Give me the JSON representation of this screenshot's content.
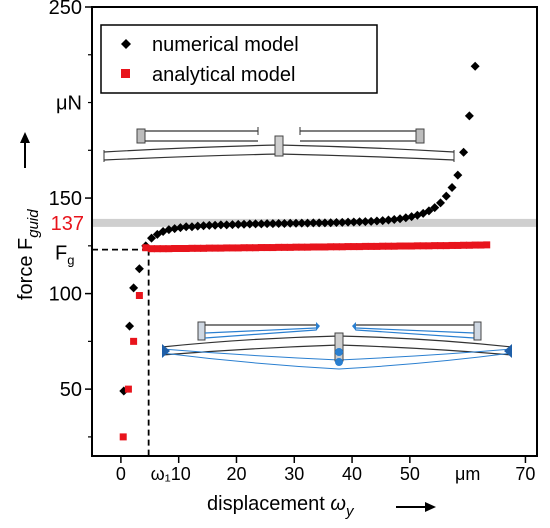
{
  "chart_data": {
    "type": "scatter",
    "xlabel": "displacement ωy",
    "ylabel": "force Fguid",
    "xlim": [
      -5,
      72
    ],
    "ylim": [
      15,
      250
    ],
    "x_ticks": [
      0,
      10,
      20,
      30,
      40,
      50,
      70
    ],
    "x_tick_labels": [
      "0",
      "ω₁10",
      "20",
      "30",
      "40",
      "50",
      "70"
    ],
    "x_unit": "μm",
    "y_ticks": [
      50,
      100,
      150,
      250
    ],
    "y_unit": "μN",
    "grid": false,
    "legend_position": "top-left",
    "series": [
      {
        "name": "numerical model",
        "color": "#000000",
        "marker": "diamond",
        "points": [
          [
            0.5,
            49
          ],
          [
            1.5,
            83
          ],
          [
            2.2,
            103
          ],
          [
            3.2,
            113
          ],
          [
            4.3,
            125
          ],
          [
            5.3,
            129
          ],
          [
            6.3,
            131
          ],
          [
            7.3,
            132.5
          ],
          [
            8.3,
            133.5
          ],
          [
            9.3,
            134
          ],
          [
            10.3,
            134.5
          ],
          [
            11.3,
            135
          ],
          [
            12.3,
            135
          ],
          [
            13.3,
            135.3
          ],
          [
            14.3,
            135.5
          ],
          [
            15.3,
            135.7
          ],
          [
            16.3,
            135.8
          ],
          [
            17.3,
            136
          ],
          [
            18.3,
            136
          ],
          [
            19.3,
            136.1
          ],
          [
            20.3,
            136.2
          ],
          [
            21.3,
            136.3
          ],
          [
            22.3,
            136.4
          ],
          [
            23.3,
            136.5
          ],
          [
            24.3,
            136.5
          ],
          [
            25.3,
            136.6
          ],
          [
            26.3,
            136.6
          ],
          [
            27.3,
            136.7
          ],
          [
            28.3,
            136.7
          ],
          [
            29.3,
            136.8
          ],
          [
            30.3,
            136.8
          ],
          [
            31.3,
            136.9
          ],
          [
            32.3,
            136.9
          ],
          [
            33.3,
            137
          ],
          [
            34.3,
            137
          ],
          [
            35.3,
            137
          ],
          [
            36.3,
            137.1
          ],
          [
            37.3,
            137.2
          ],
          [
            38.3,
            137.3
          ],
          [
            39.3,
            137.4
          ],
          [
            40.3,
            137.5
          ],
          [
            41.3,
            137.6
          ],
          [
            42.3,
            137.7
          ],
          [
            43.3,
            137.8
          ],
          [
            44.3,
            138
          ],
          [
            45.3,
            138.2
          ],
          [
            46.3,
            138.5
          ],
          [
            47.3,
            138.8
          ],
          [
            48.3,
            139.2
          ],
          [
            49.3,
            139.7
          ],
          [
            50.3,
            140.3
          ],
          [
            51.3,
            141
          ],
          [
            52.3,
            142
          ],
          [
            53.3,
            143.3
          ],
          [
            54.3,
            145
          ],
          [
            55.3,
            147.5
          ],
          [
            56.3,
            151
          ],
          [
            57.3,
            155.5
          ],
          [
            58.3,
            162
          ],
          [
            59.3,
            174
          ],
          [
            60.3,
            193
          ],
          [
            61.3,
            219
          ]
        ]
      },
      {
        "name": "analytical model",
        "color": "#e8141c",
        "marker": "square",
        "points": [
          [
            0.4,
            25
          ],
          [
            1.3,
            50
          ],
          [
            2.2,
            75
          ],
          [
            3.2,
            99
          ],
          [
            4.3,
            124
          ],
          [
            5.3,
            123.5
          ],
          [
            6.3,
            123.5
          ],
          [
            7.3,
            123.5
          ],
          [
            8.3,
            123.5
          ],
          [
            9.3,
            123.6
          ],
          [
            10.3,
            123.6
          ],
          [
            11.3,
            123.6
          ],
          [
            12.3,
            123.7
          ],
          [
            13.3,
            123.7
          ],
          [
            14.3,
            123.7
          ],
          [
            15.3,
            123.8
          ],
          [
            16.3,
            123.8
          ],
          [
            17.3,
            123.8
          ],
          [
            18.3,
            123.9
          ],
          [
            19.3,
            123.9
          ],
          [
            20.3,
            123.9
          ],
          [
            21.3,
            124
          ],
          [
            22.3,
            124
          ],
          [
            23.3,
            124
          ],
          [
            24.3,
            124.1
          ],
          [
            25.3,
            124.1
          ],
          [
            26.3,
            124.1
          ],
          [
            27.3,
            124.2
          ],
          [
            28.3,
            124.2
          ],
          [
            29.3,
            124.2
          ],
          [
            30.3,
            124.3
          ],
          [
            31.3,
            124.3
          ],
          [
            32.3,
            124.3
          ],
          [
            33.3,
            124.4
          ],
          [
            34.3,
            124.4
          ],
          [
            35.3,
            124.4
          ],
          [
            36.3,
            124.5
          ],
          [
            37.3,
            124.5
          ],
          [
            38.3,
            124.5
          ],
          [
            39.3,
            124.6
          ],
          [
            40.3,
            124.6
          ],
          [
            41.3,
            124.6
          ],
          [
            42.3,
            124.7
          ],
          [
            43.3,
            124.7
          ],
          [
            44.3,
            124.7
          ],
          [
            45.3,
            124.8
          ],
          [
            46.3,
            124.8
          ],
          [
            47.3,
            124.8
          ],
          [
            48.3,
            124.9
          ],
          [
            49.3,
            124.9
          ],
          [
            50.3,
            124.9
          ],
          [
            51.3,
            125
          ],
          [
            52.3,
            125
          ],
          [
            53.3,
            125
          ],
          [
            54.3,
            125.1
          ],
          [
            55.3,
            125.1
          ],
          [
            56.3,
            125.1
          ],
          [
            57.3,
            125.2
          ],
          [
            58.3,
            125.2
          ],
          [
            59.3,
            125.3
          ],
          [
            60.3,
            125.3
          ],
          [
            61.3,
            125.4
          ],
          [
            62.3,
            125.4
          ],
          [
            63.3,
            125.5
          ]
        ]
      }
    ],
    "annotations": {
      "reference_line_value": 137,
      "reference_line_label": "137",
      "fg_label": "F",
      "fg_sub": "g",
      "fg_value": 123,
      "omega1_x": 4.8
    }
  }
}
